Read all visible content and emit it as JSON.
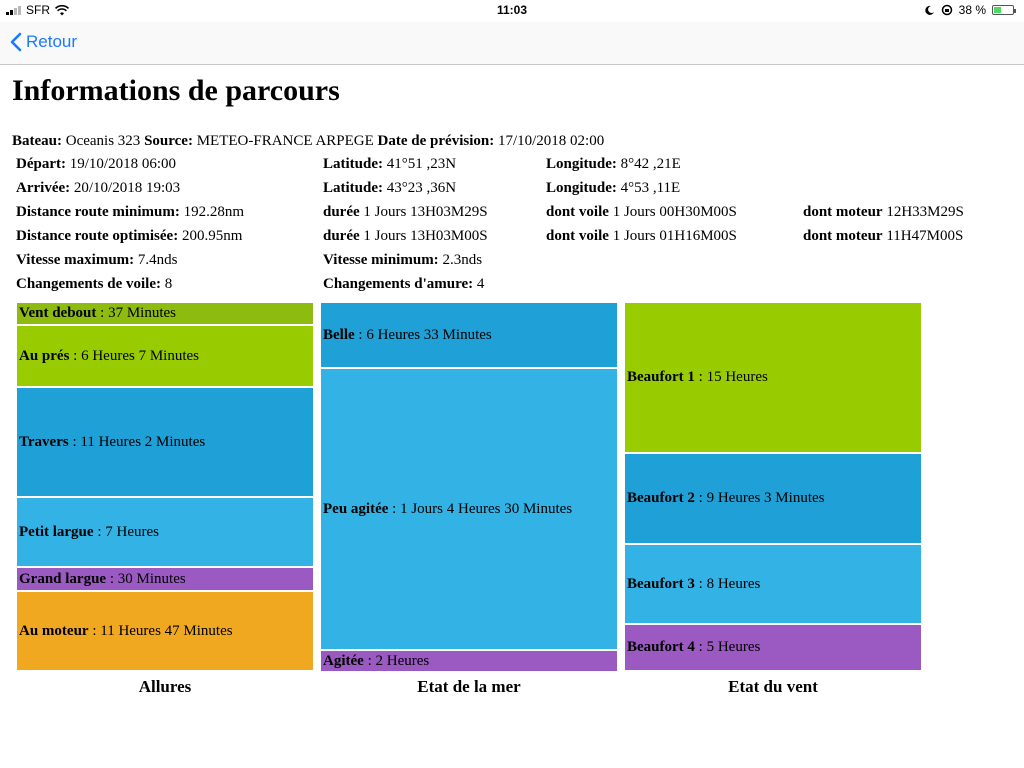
{
  "status": {
    "carrier": "SFR",
    "time": "11:03",
    "battery": "38 %",
    "battery_level": 0.38
  },
  "nav": {
    "back_label": "Retour"
  },
  "title": "Informations de parcours",
  "header": {
    "bateau_label": "Bateau:",
    "bateau": "Oceanis 323",
    "source_label": "Source:",
    "source": "METEO-FRANCE ARPEGE",
    "date_label": "Date de prévision:",
    "date": "17/10/2018 02:00"
  },
  "details": {
    "depart_label": "Départ:",
    "depart": "19/10/2018 06:00",
    "lat1_label": "Latitude:",
    "lat1": "41°51 ,23N",
    "lon1_label": "Longitude:",
    "lon1": "8°42 ,21E",
    "arrivee_label": "Arrivée:",
    "arrivee": "20/10/2018 19:03",
    "lat2_label": "Latitude:",
    "lat2": "43°23 ,36N",
    "lon2_label": "Longitude:",
    "lon2": "4°53 ,11E",
    "dmin_label": "Distance route minimum:",
    "dmin": "192.28nm",
    "duree1_label": "durée",
    "duree1": "1 Jours 13H03M29S",
    "voile1_label": "dont voile",
    "voile1": "1 Jours 00H30M00S",
    "moteur1_label": "dont moteur",
    "moteur1": "12H33M29S",
    "dopt_label": "Distance route optimisée:",
    "dopt": "200.95nm",
    "duree2_label": "durée",
    "duree2": "1 Jours 13H03M00S",
    "voile2_label": "dont voile",
    "voile2": "1 Jours 01H16M00S",
    "moteur2_label": "dont moteur",
    "moteur2": "11H47M00S",
    "vmax_label": "Vitesse maximum:",
    "vmax": "7.4nds",
    "vmin_label": "Vitesse minimum:",
    "vmin": "2.3nds",
    "voile_ch_label": "Changements de voile:",
    "voile_ch": "8",
    "amure_ch_label": "Changements d'amure:",
    "amure_ch": "4"
  },
  "chart_data": [
    {
      "type": "treemap",
      "title": "Allures",
      "items": [
        {
          "name": "Vent debout",
          "value": "37 Minutes",
          "color": "#8dbb10"
        },
        {
          "name": "Au prés",
          "value": "6 Heures 7 Minutes",
          "color": "#99cc00"
        },
        {
          "name": "Travers",
          "value": "11 Heures 2 Minutes",
          "color": "#1fa0d6"
        },
        {
          "name": "Petit largue",
          "value": "7 Heures",
          "color": "#33b3e5"
        },
        {
          "name": "Grand largue",
          "value": "30 Minutes",
          "color": "#9b59c2"
        },
        {
          "name": "Au moteur",
          "value": "11 Heures 47 Minutes",
          "color": "#f0a820"
        }
      ]
    },
    {
      "type": "treemap",
      "title": "Etat de la mer",
      "items": [
        {
          "name": "Belle",
          "value": "6 Heures 33 Minutes",
          "color": "#1fa0d6"
        },
        {
          "name": "Peu agitée",
          "value": "1 Jours 4 Heures 30 Minutes",
          "color": "#33b3e5"
        },
        {
          "name": "Agitée",
          "value": "2 Heures",
          "color": "#9b59c2"
        }
      ]
    },
    {
      "type": "treemap",
      "title": "Etat du vent",
      "items": [
        {
          "name": "Beaufort 1",
          "value": "15 Heures",
          "color": "#99cc00"
        },
        {
          "name": "Beaufort 2",
          "value": "9 Heures 3 Minutes",
          "color": "#1fa0d6"
        },
        {
          "name": "Beaufort 3",
          "value": "8 Heures",
          "color": "#33b3e5"
        },
        {
          "name": "Beaufort 4",
          "value": "5 Heures",
          "color": "#9b59c2"
        }
      ]
    }
  ]
}
